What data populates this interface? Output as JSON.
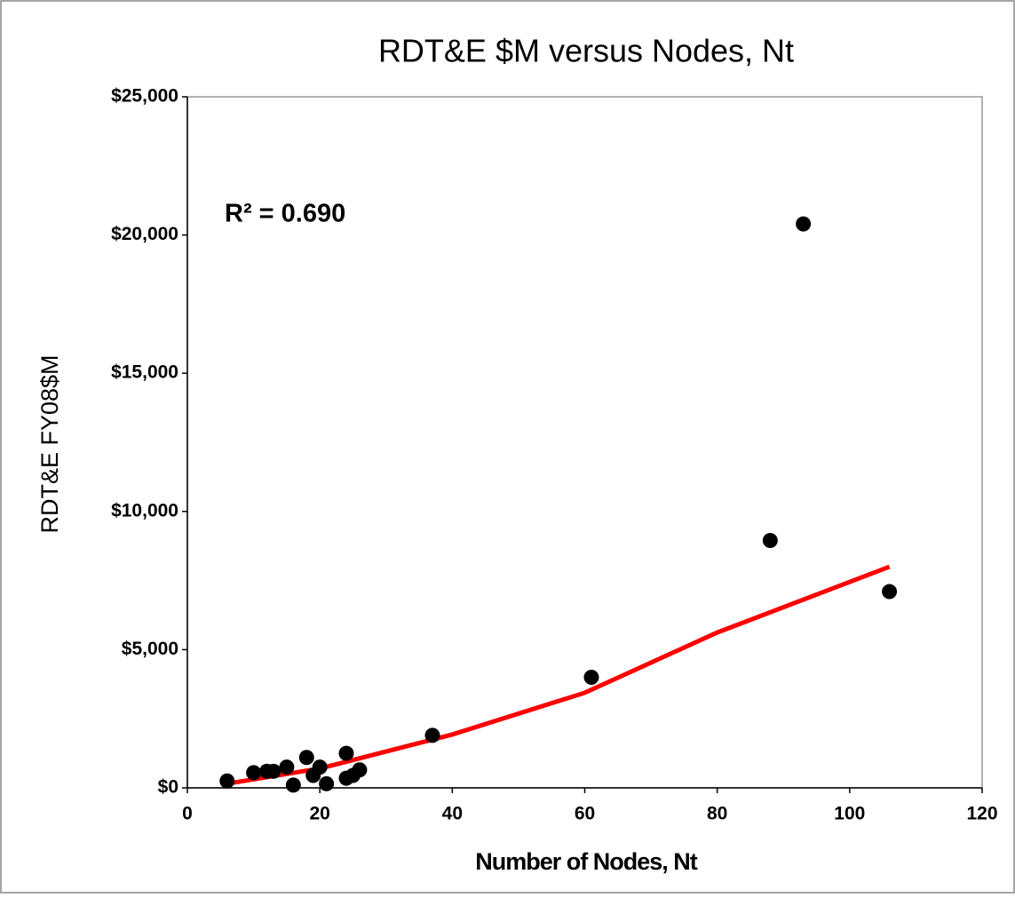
{
  "chart_data": {
    "type": "scatter",
    "title": "RDT&E $M versus Nodes, Nt",
    "x_label": "Number of Nodes, Nt",
    "y_label": "RDT&E FY08$M",
    "annotation": "R² = 0.690",
    "x": [
      6,
      10,
      12,
      13,
      15,
      16,
      18,
      19,
      20,
      21,
      24,
      24,
      25,
      26,
      37,
      61,
      88,
      93,
      106
    ],
    "values": [
      250,
      550,
      600,
      600,
      750,
      100,
      1100,
      450,
      750,
      150,
      1250,
      350,
      450,
      650,
      1900,
      4000,
      8950,
      20400,
      7100
    ],
    "color": "#000000",
    "trendline": {
      "color": "#ff0000",
      "x": [
        6,
        20,
        40,
        60,
        80,
        106
      ],
      "y": [
        150,
        700,
        1930,
        3440,
        5620,
        8000
      ]
    },
    "xlim": [
      0,
      120
    ],
    "xticks": [
      0,
      20,
      40,
      60,
      80,
      100,
      120
    ],
    "ylim": [
      0,
      25000
    ],
    "yticks": [
      {
        "value": 0,
        "label": "$0"
      },
      {
        "value": 5000,
        "label": "$5,000"
      },
      {
        "value": 10000,
        "label": "$10,000"
      },
      {
        "value": 15000,
        "label": "$15,000"
      },
      {
        "value": 20000,
        "label": "$20,000"
      },
      {
        "value": 25000,
        "label": "$25,000"
      }
    ],
    "grid": false
  }
}
